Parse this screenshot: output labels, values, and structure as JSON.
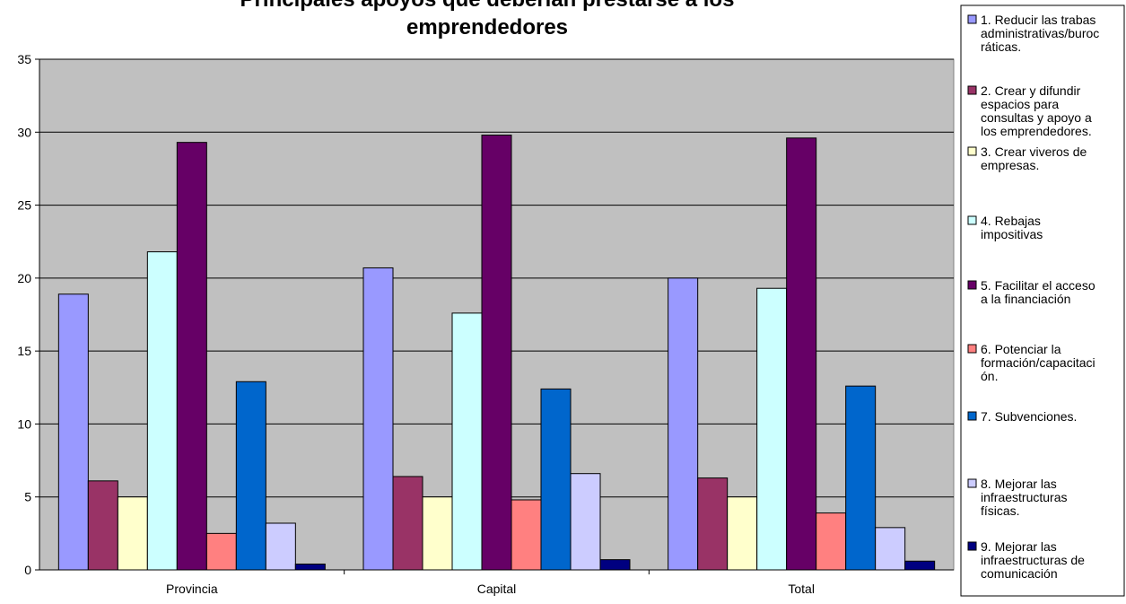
{
  "chart_data": {
    "type": "bar",
    "title": "Principales apoyos que deberían prestarse a los emprendedores",
    "title_lines": [
      "Principales apoyos que deberían prestarse a los",
      "emprendedores"
    ],
    "categories": [
      "Provincia",
      "Capital",
      "Total"
    ],
    "ylim": [
      0,
      35
    ],
    "yticks": [
      0,
      5,
      10,
      15,
      20,
      25,
      30,
      35
    ],
    "grid": true,
    "legend_position": "right",
    "plot_background": "#c0c0c0",
    "series": [
      {
        "name": "1. Reducir las trabas administrativas/burocráticas.",
        "legend_lines": [
          "1. Reducir las trabas",
          "administrativas/buroc",
          "ráticas."
        ],
        "color": "#9999ff",
        "values": [
          18.9,
          20.7,
          20.0
        ]
      },
      {
        "name": "2. Crear y difundir espacios para consultas y apoyo a los emprendedores.",
        "legend_lines": [
          "2. Crear y difundir",
          "espacios para",
          "consultas y apoyo a",
          "los emprendedores."
        ],
        "color": "#993366",
        "values": [
          6.1,
          6.4,
          6.3
        ]
      },
      {
        "name": "3. Crear viveros de empresas.",
        "legend_lines": [
          "3. Crear viveros de",
          "empresas."
        ],
        "color": "#ffffcc",
        "values": [
          5.0,
          5.0,
          5.0
        ]
      },
      {
        "name": "4. Rebajas impositivas",
        "legend_lines": [
          "4. Rebajas",
          "impositivas"
        ],
        "color": "#ccffff",
        "values": [
          21.8,
          17.6,
          19.3
        ]
      },
      {
        "name": "5. Facilitar el acceso a la financiación",
        "legend_lines": [
          "5. Facilitar el acceso",
          "a la financiación"
        ],
        "color": "#660066",
        "values": [
          29.3,
          29.8,
          29.6
        ]
      },
      {
        "name": "6. Potenciar la formación/capacitación.",
        "legend_lines": [
          "6. Potenciar la",
          "formación/capacitaci",
          "ón."
        ],
        "color": "#ff8080",
        "values": [
          2.5,
          4.8,
          3.9
        ]
      },
      {
        "name": "7. Subvenciones.",
        "legend_lines": [
          "7. Subvenciones."
        ],
        "color": "#0066cc",
        "values": [
          12.9,
          12.4,
          12.6
        ]
      },
      {
        "name": "8. Mejorar las infraestructuras físicas.",
        "legend_lines": [
          "8. Mejorar las",
          "infraestructuras",
          "físicas."
        ],
        "color": "#ccccff",
        "values": [
          3.2,
          6.6,
          2.9
        ]
      },
      {
        "name": "9. Mejorar las infraestructuras de comunicación",
        "legend_lines": [
          "9. Mejorar las",
          "infraestructuras de",
          "comunicación"
        ],
        "color": "#000080",
        "values": [
          0.4,
          0.7,
          0.6
        ]
      }
    ]
  }
}
